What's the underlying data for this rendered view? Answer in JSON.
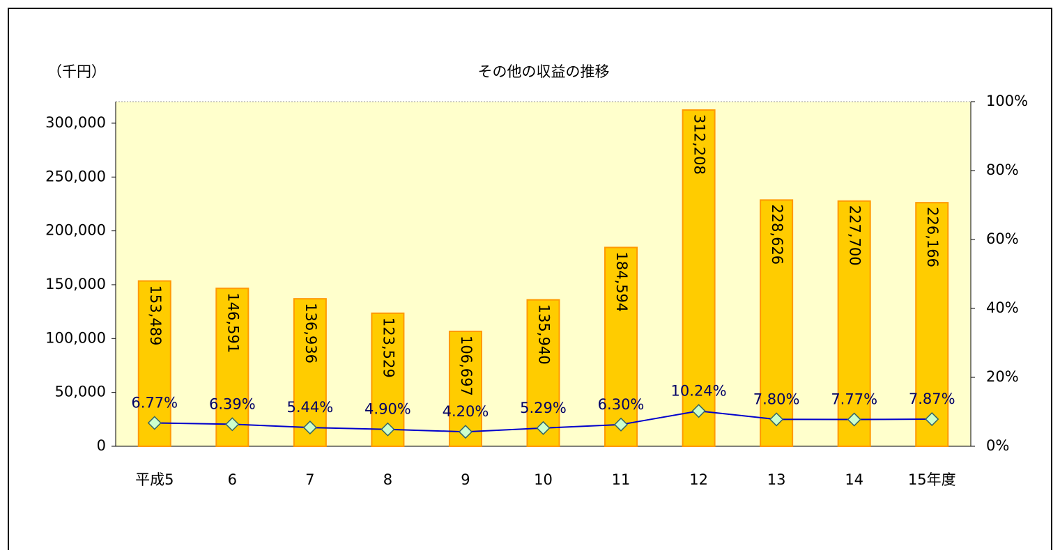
{
  "chart_data": {
    "type": "combo",
    "title": "その他の収益の推移",
    "y_axis_label": "（千円）",
    "categories": [
      "平成5",
      "6",
      "7",
      "8",
      "9",
      "10",
      "11",
      "12",
      "13",
      "14",
      "15年度"
    ],
    "series": [
      {
        "type": "bar",
        "color": "#ffcc00",
        "values": [
          153489,
          146591,
          136936,
          123529,
          106697,
          135940,
          184594,
          312208,
          228626,
          227700,
          226166
        ],
        "value_labels": [
          "153,489",
          "146,591",
          "136,936",
          "123,529",
          "106,697",
          "135,940",
          "184,594",
          "312,208",
          "228,626",
          "227,700",
          "226,166"
        ]
      },
      {
        "type": "line",
        "axis": "y2",
        "color": "#0000cc",
        "values": [
          6.77,
          6.39,
          5.44,
          4.9,
          4.2,
          5.29,
          6.3,
          10.24,
          7.8,
          7.77,
          7.87
        ],
        "value_labels": [
          "6.77%",
          "6.39%",
          "5.44%",
          "4.90%",
          "4.20%",
          "5.29%",
          "6.30%",
          "10.24%",
          "7.80%",
          "7.77%",
          "7.87%"
        ]
      }
    ],
    "ylim": [
      0,
      320000
    ],
    "yticks": [
      0,
      {
        "value": 50000,
        "label": "50,000"
      },
      {
        "value": 100000,
        "label": "100,000"
      },
      {
        "value": 150000,
        "label": "150,000"
      },
      {
        "value": 200000,
        "label": "200,000"
      },
      {
        "value": 250000,
        "label": "250,000"
      },
      {
        "value": 300000,
        "label": "300,000"
      }
    ],
    "y2lim": [
      0,
      100
    ],
    "y2ticks": [
      {
        "value": 0,
        "label": "0%"
      },
      {
        "value": 20,
        "label": "20%"
      },
      {
        "value": 40,
        "label": "40%"
      },
      {
        "value": 60,
        "label": "60%"
      },
      {
        "value": 80,
        "label": "80%"
      },
      {
        "value": 100,
        "label": "100%"
      }
    ]
  }
}
